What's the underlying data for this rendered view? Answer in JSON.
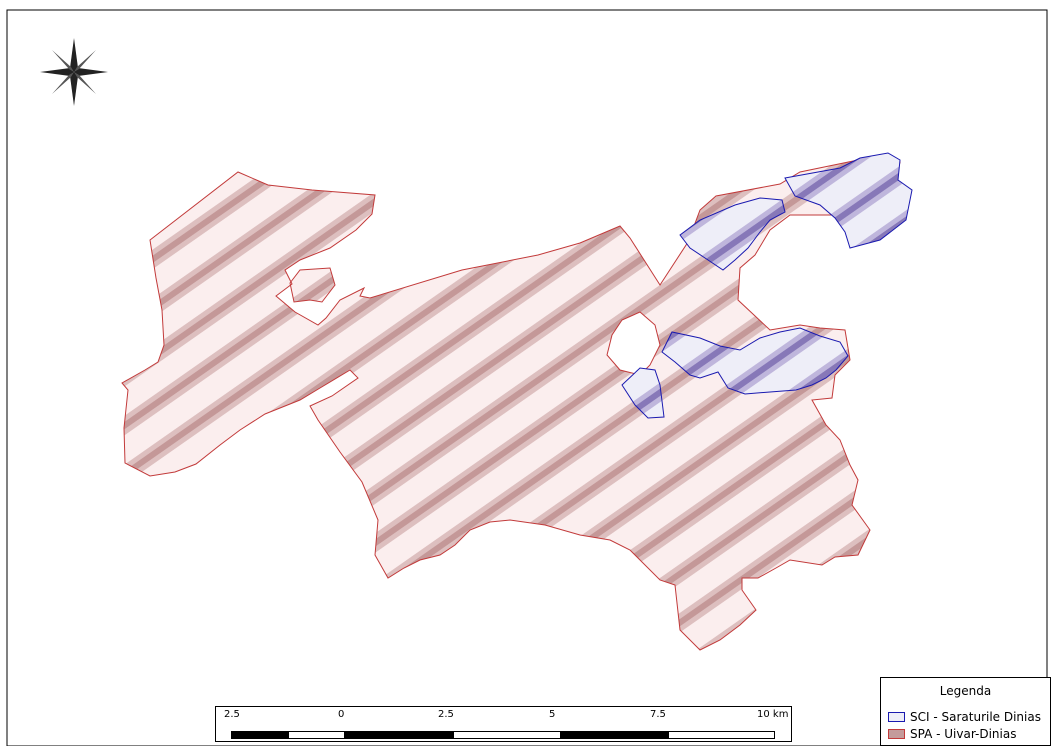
{
  "map": {
    "legend": {
      "title": "Legenda",
      "items": [
        {
          "label": "SCI - Saraturile Dinias",
          "fill": "#eeeef8",
          "stroke": "#1a1ab0"
        },
        {
          "label": "SPA -  Uivar-Dinias",
          "fill": "#c49b9b",
          "stroke": "#c23a3a"
        }
      ]
    },
    "scale": {
      "labels": [
        "2.5",
        "0",
        "2.5",
        "5",
        "7.5",
        "10 km"
      ]
    },
    "colors": {
      "spa_fill": "#fbeeee",
      "spa_hatch": "#c99a9a",
      "spa_stroke": "#c23a3a",
      "sci_fill": "#eeeef8",
      "sci_hatch": "#8a7ab8",
      "sci_stroke": "#1a1ab0"
    },
    "icons": [
      "compass-rose-icon"
    ]
  }
}
